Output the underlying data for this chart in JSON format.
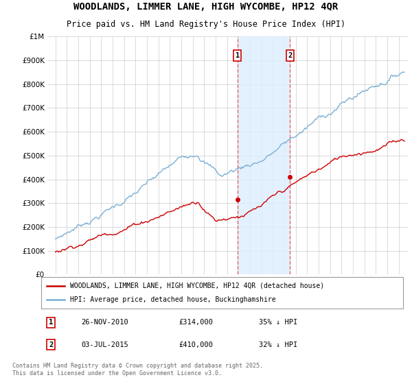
{
  "title": "WOODLANDS, LIMMER LANE, HIGH WYCOMBE, HP12 4QR",
  "subtitle": "Price paid vs. HM Land Registry's House Price Index (HPI)",
  "ylim": [
    0,
    1000000
  ],
  "yticks": [
    0,
    100000,
    200000,
    300000,
    400000,
    500000,
    600000,
    700000,
    800000,
    900000,
    1000000
  ],
  "ytick_labels": [
    "£0",
    "£100K",
    "£200K",
    "£300K",
    "£400K",
    "£500K",
    "£600K",
    "£700K",
    "£800K",
    "£900K",
    "£1M"
  ],
  "hpi_color": "#7bafd4",
  "price_color": "#cc0000",
  "vline_color": "#ee6666",
  "span_color": "#ddeeff",
  "background_color": "#ffffff",
  "grid_color": "#cccccc",
  "sale1_date": "26-NOV-2010",
  "sale1_price": 314000,
  "sale1_pct": "35%",
  "sale2_date": "03-JUL-2015",
  "sale2_price": 410000,
  "sale2_pct": "32%",
  "legend_label1": "WOODLANDS, LIMMER LANE, HIGH WYCOMBE, HP12 4QR (detached house)",
  "legend_label2": "HPI: Average price, detached house, Buckinghamshire",
  "footer": "Contains HM Land Registry data © Crown copyright and database right 2025.\nThis data is licensed under the Open Government Licence v3.0.",
  "sale1_x": 2010.9,
  "sale2_x": 2015.5,
  "xlim_left": 1994.3,
  "xlim_right": 2025.8
}
